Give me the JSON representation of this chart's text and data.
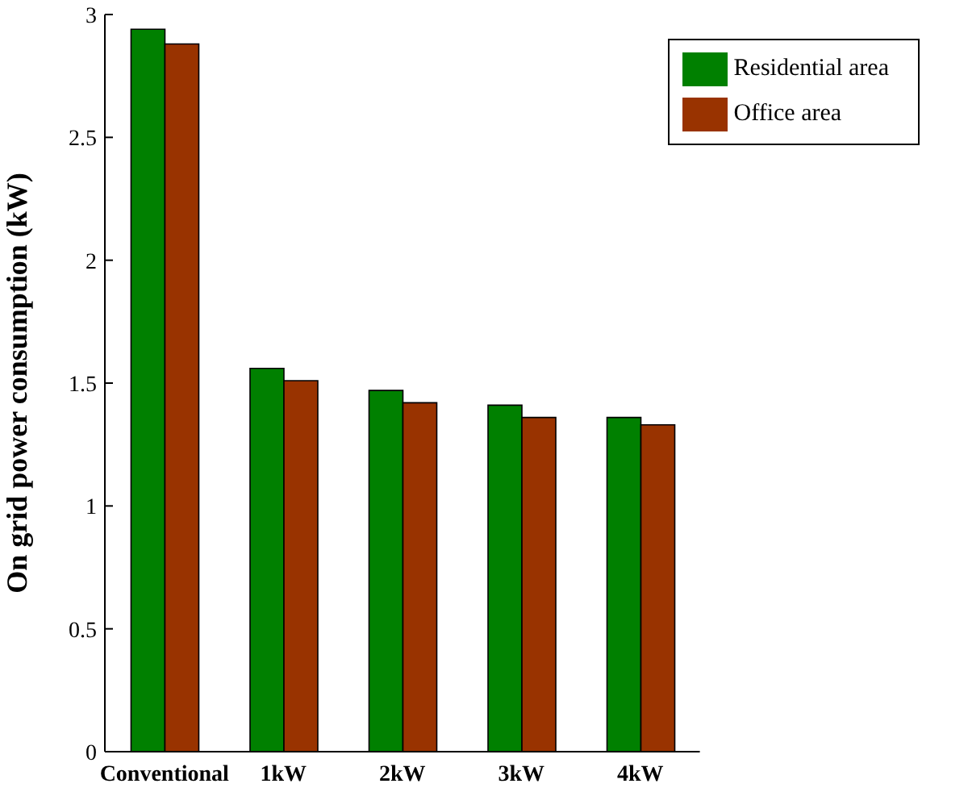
{
  "chart_data": {
    "type": "bar",
    "ylabel": "On grid power consumption (kW)",
    "categories": [
      "Conventional",
      "1kW",
      "2kW",
      "3kW",
      "4kW"
    ],
    "series": [
      {
        "name": "Residential area",
        "color": "#008000",
        "values": [
          2.94,
          1.56,
          1.47,
          1.41,
          1.36
        ]
      },
      {
        "name": "Office area",
        "color": "#993300",
        "values": [
          2.88,
          1.51,
          1.42,
          1.36,
          1.33
        ]
      }
    ],
    "ylim": [
      0,
      3
    ],
    "yticks": [
      0,
      0.5,
      1,
      1.5,
      2,
      2.5,
      3
    ],
    "grid": false,
    "legend": "top right"
  }
}
